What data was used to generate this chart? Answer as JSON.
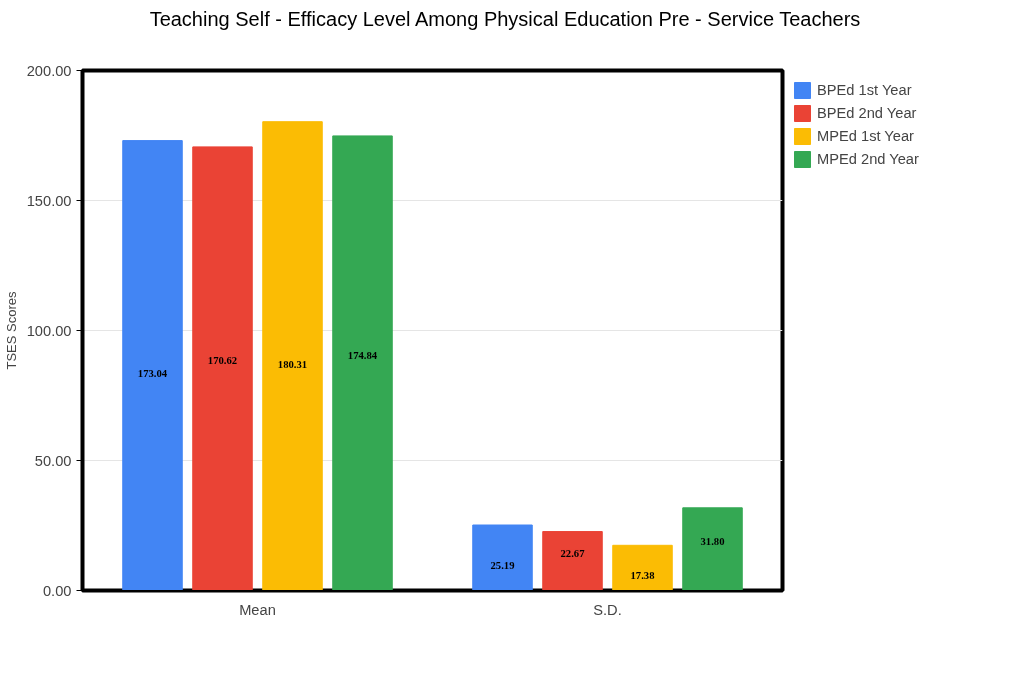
{
  "chart_data": {
    "type": "bar",
    "title": "Teaching Self - Efficacy Level Among Physical Education Pre - Service Teachers",
    "ylabel": "TSES Scores",
    "categories": [
      "Mean",
      "S.D."
    ],
    "series": [
      {
        "name": "BPEd 1st Year",
        "color": "#4285f4",
        "values": [
          173.04,
          25.19
        ],
        "value_labels": [
          "173.04",
          "25.19"
        ]
      },
      {
        "name": "BPEd 2nd Year",
        "color": "#ea4335",
        "values": [
          170.62,
          22.67
        ],
        "value_labels": [
          "170.62",
          "22.67"
        ]
      },
      {
        "name": "MPEd 1st Year",
        "color": "#fbbc04",
        "values": [
          180.31,
          17.38
        ],
        "value_labels": [
          "180.31",
          "17.38"
        ]
      },
      {
        "name": "MPEd 2nd Year",
        "color": "#34a853",
        "values": [
          174.84,
          31.8
        ],
        "value_labels": [
          "174.84",
          "31.80"
        ]
      }
    ],
    "ylim": [
      0,
      200
    ],
    "yticks": [
      {
        "value": 0,
        "label": "0.00"
      },
      {
        "value": 50,
        "label": "50.00"
      },
      {
        "value": 100,
        "label": "100.00"
      },
      {
        "value": 150,
        "label": "150.00"
      },
      {
        "value": 200,
        "label": "200.00"
      }
    ],
    "grid": "y",
    "legend": "top right"
  }
}
